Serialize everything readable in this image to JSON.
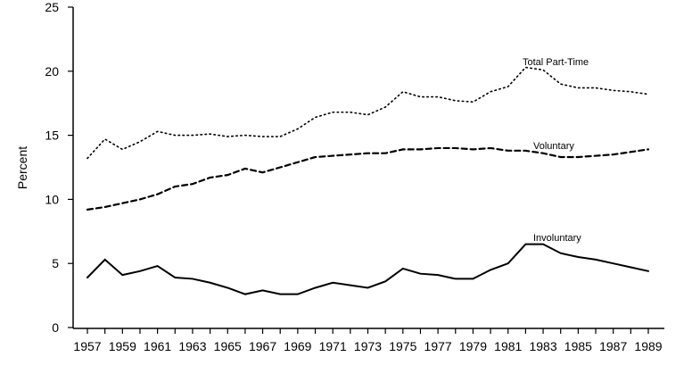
{
  "chart_data": {
    "type": "line",
    "title": "",
    "xlabel": "",
    "ylabel": "Percent",
    "ylim": [
      0,
      25
    ],
    "xlim": [
      1957,
      1989
    ],
    "yticks": [
      0,
      5,
      10,
      15,
      20,
      25
    ],
    "xticklabels": [
      1957,
      1959,
      1961,
      1963,
      1965,
      1967,
      1969,
      1971,
      1973,
      1975,
      1977,
      1979,
      1981,
      1983,
      1985,
      1987,
      1989
    ],
    "grid": false,
    "x": [
      1957,
      1958,
      1959,
      1960,
      1961,
      1962,
      1963,
      1964,
      1965,
      1966,
      1967,
      1968,
      1969,
      1970,
      1971,
      1972,
      1973,
      1974,
      1975,
      1976,
      1977,
      1978,
      1979,
      1980,
      1981,
      1982,
      1983,
      1984,
      1985,
      1986,
      1987,
      1988,
      1989
    ],
    "series": [
      {
        "name": "Total Part-Time",
        "style": "dotted",
        "values": [
          13.2,
          14.7,
          13.9,
          14.5,
          15.3,
          15.0,
          15.0,
          15.1,
          14.9,
          15.0,
          14.9,
          14.9,
          15.5,
          16.4,
          16.8,
          16.8,
          16.6,
          17.2,
          18.4,
          18.0,
          18.0,
          17.7,
          17.6,
          18.4,
          18.8,
          20.3,
          20.1,
          19.0,
          18.7,
          18.7,
          18.5,
          18.4,
          18.2
        ]
      },
      {
        "name": "Voluntary",
        "style": "dashed",
        "values": [
          9.2,
          9.4,
          9.7,
          10.0,
          10.4,
          11.0,
          11.2,
          11.7,
          11.9,
          12.4,
          12.1,
          12.5,
          12.9,
          13.3,
          13.4,
          13.5,
          13.6,
          13.6,
          13.9,
          13.9,
          14.0,
          14.0,
          13.9,
          14.0,
          13.8,
          13.8,
          13.6,
          13.3,
          13.3,
          13.4,
          13.5,
          13.7,
          13.9
        ]
      },
      {
        "name": "Involuntary",
        "style": "solid",
        "values": [
          3.9,
          5.3,
          4.1,
          4.4,
          4.8,
          3.9,
          3.8,
          3.5,
          3.1,
          2.6,
          2.9,
          2.6,
          2.6,
          3.1,
          3.5,
          3.3,
          3.1,
          3.6,
          4.6,
          4.2,
          4.1,
          3.8,
          3.8,
          4.5,
          5.0,
          6.5,
          6.5,
          5.8,
          5.5,
          5.3,
          5.0,
          4.7,
          4.4
        ]
      }
    ]
  }
}
